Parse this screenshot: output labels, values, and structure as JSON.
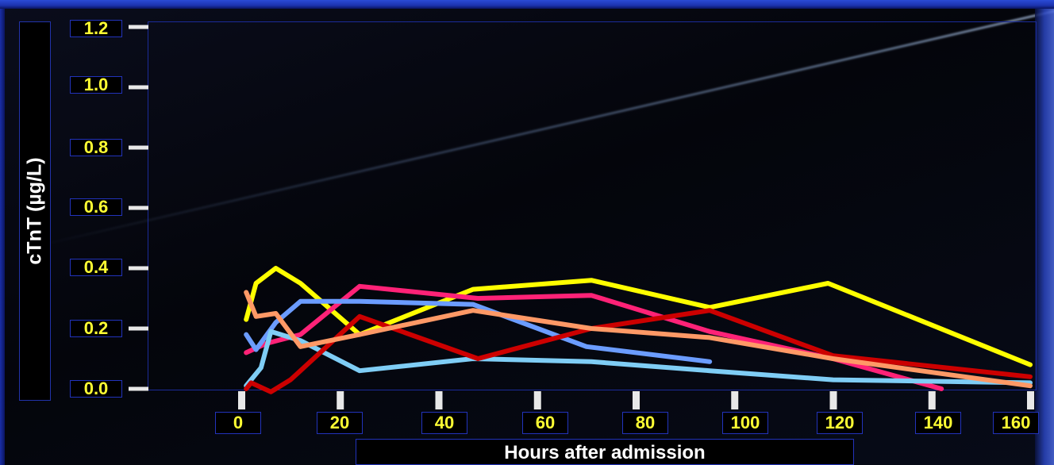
{
  "chart_data": {
    "type": "line",
    "title": "",
    "xlabel": "Hours after admission",
    "ylabel": "cTnT (µg/L)",
    "xlim": [
      0,
      160
    ],
    "ylim": [
      0,
      1.2
    ],
    "x_ticks": [
      "0",
      "20",
      "40",
      "60",
      "80",
      "100",
      "120",
      "140",
      "160"
    ],
    "y_ticks": [
      "1.2",
      "1.0",
      "0.8",
      "0.6",
      "0.4",
      "0.2",
      "0.0"
    ],
    "grid": false,
    "legend": "none",
    "series": [
      {
        "color": "#ffff00",
        "x": [
          1,
          3,
          7,
          12,
          24,
          47,
          71,
          95,
          119,
          160
        ],
        "y": [
          0.23,
          0.35,
          0.4,
          0.35,
          0.18,
          0.33,
          0.36,
          0.27,
          0.35,
          0.08
        ]
      },
      {
        "color": "#ff2277",
        "x": [
          1,
          5,
          12,
          24,
          48,
          71,
          95,
          120,
          142
        ],
        "y": [
          0.12,
          0.15,
          0.18,
          0.34,
          0.3,
          0.31,
          0.19,
          0.1,
          0.0
        ]
      },
      {
        "color": "#6b9cff",
        "x": [
          1,
          3,
          7,
          12,
          24,
          47,
          70,
          95
        ],
        "y": [
          0.18,
          0.13,
          0.22,
          0.29,
          0.29,
          0.28,
          0.14,
          0.09
        ]
      },
      {
        "color": "#7fcdf5",
        "x": [
          1,
          4,
          6,
          12,
          24,
          47,
          71,
          95,
          120,
          160
        ],
        "y": [
          0.01,
          0.07,
          0.19,
          0.16,
          0.06,
          0.1,
          0.09,
          0.06,
          0.03,
          0.02
        ]
      },
      {
        "color": "#cc0000",
        "x": [
          1,
          2,
          6,
          10,
          24,
          48,
          71,
          95,
          120,
          160
        ],
        "y": [
          0.0,
          0.02,
          -0.01,
          0.03,
          0.24,
          0.1,
          0.2,
          0.26,
          0.11,
          0.04
        ]
      },
      {
        "color": "#ff9966",
        "x": [
          1,
          3,
          7,
          12,
          24,
          47,
          71,
          95,
          120,
          160
        ],
        "y": [
          0.32,
          0.24,
          0.25,
          0.14,
          0.18,
          0.26,
          0.2,
          0.17,
          0.1,
          0.01
        ]
      }
    ]
  }
}
